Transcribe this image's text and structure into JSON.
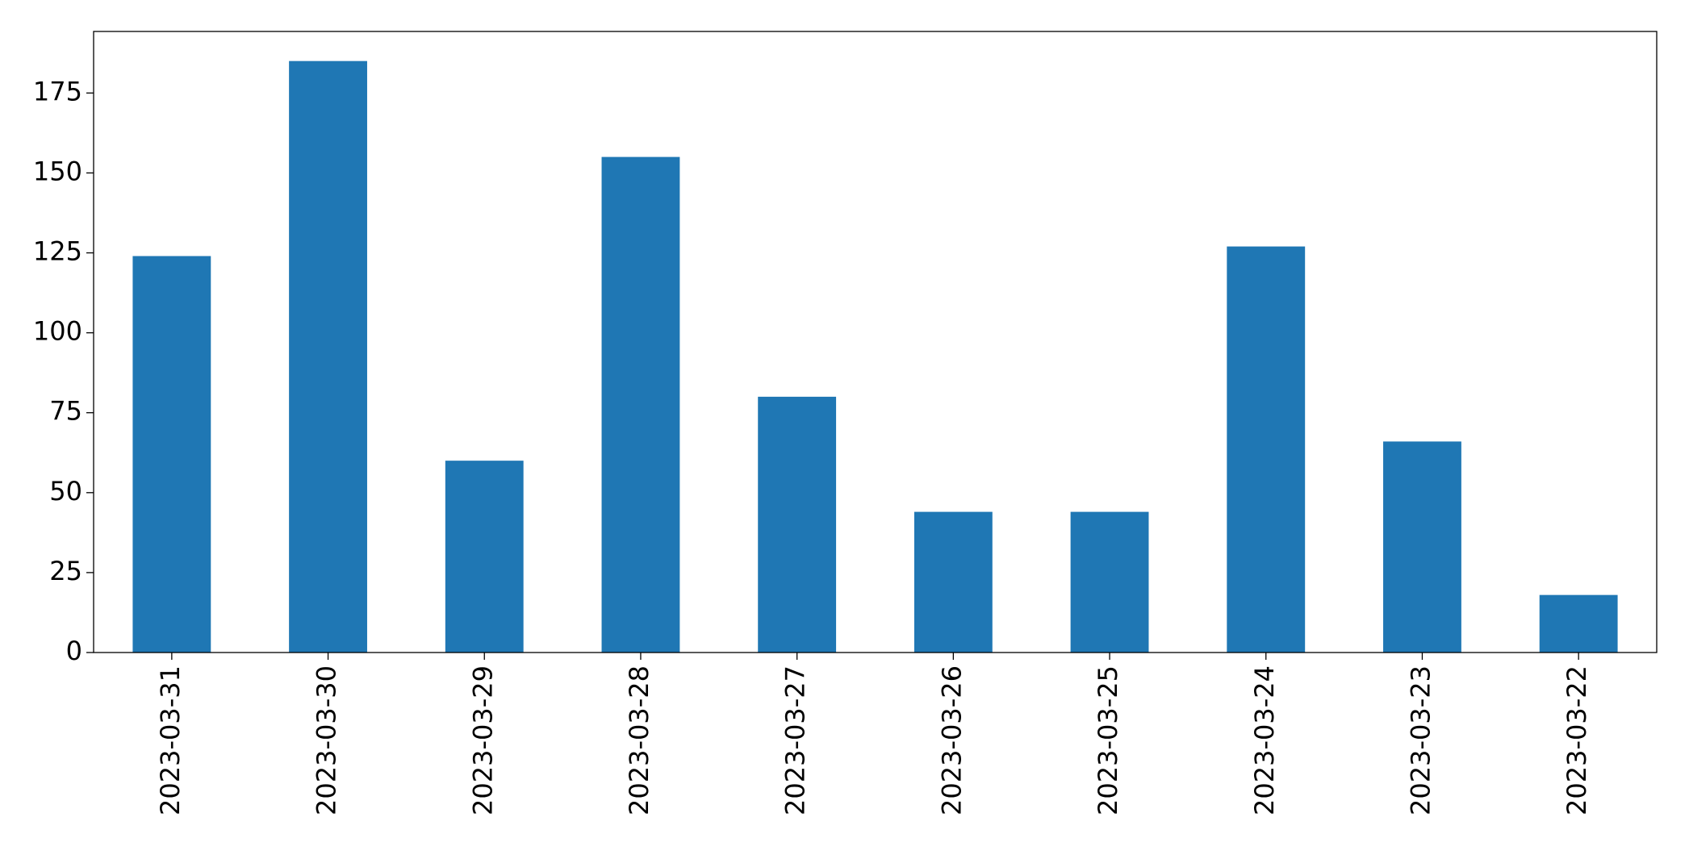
{
  "chart_data": {
    "type": "bar",
    "categories": [
      "2023-03-31",
      "2023-03-30",
      "2023-03-29",
      "2023-03-28",
      "2023-03-27",
      "2023-03-26",
      "2023-03-25",
      "2023-03-24",
      "2023-03-23",
      "2023-03-22"
    ],
    "values": [
      124,
      185,
      60,
      155,
      80,
      44,
      44,
      127,
      66,
      18
    ],
    "color": "#1f77b4",
    "ylim": [
      0,
      194.25
    ],
    "yticks": [
      0,
      25,
      50,
      75,
      100,
      125,
      150,
      175
    ],
    "grid": false
  }
}
